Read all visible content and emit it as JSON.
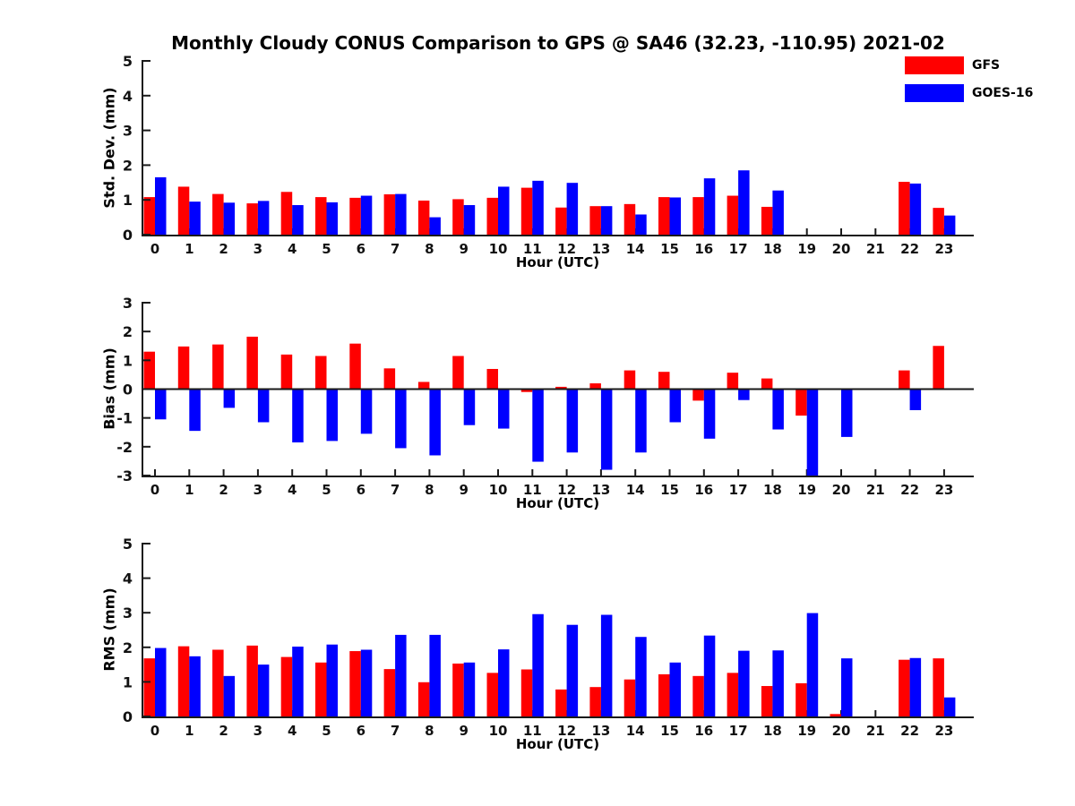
{
  "title": "Monthly Cloudy CONUS Comparison to GPS @ SA46 (32.23, -110.95) 2021-02",
  "legend": {
    "position": "top-right-outside",
    "entries": [
      {
        "label": "GFS",
        "color": "#ff0000"
      },
      {
        "label": "GOES-16",
        "color": "#0000ff"
      }
    ]
  },
  "colors": {
    "gfs": "#ff0000",
    "goes16": "#0000ff",
    "axis": "#1a1a1a",
    "text": "#111111"
  },
  "chart_data": [
    {
      "type": "bar",
      "ylabel": "Std. Dev. (mm)",
      "xlabel": "Hour (UTC)",
      "ylim": [
        0,
        5
      ],
      "yticks": [
        0,
        1,
        2,
        3,
        4,
        5
      ],
      "grid": false,
      "categories": [
        "0",
        "1",
        "2",
        "3",
        "4",
        "5",
        "6",
        "7",
        "8",
        "9",
        "10",
        "11",
        "12",
        "13",
        "14",
        "15",
        "16",
        "17",
        "18",
        "19",
        "20",
        "21",
        "22",
        "23"
      ],
      "series": [
        {
          "name": "GFS",
          "color": "#ff0000",
          "values": [
            1.08,
            1.38,
            1.17,
            0.9,
            1.23,
            1.08,
            1.06,
            1.16,
            0.98,
            1.02,
            1.06,
            1.35,
            0.78,
            0.82,
            0.88,
            1.08,
            1.08,
            1.12,
            0.8,
            null,
            null,
            null,
            1.52,
            0.77
          ]
        },
        {
          "name": "GOES-16",
          "color": "#0000ff",
          "values": [
            1.65,
            0.95,
            0.92,
            0.97,
            0.85,
            0.93,
            1.12,
            1.17,
            0.5,
            0.85,
            1.38,
            1.55,
            1.49,
            0.82,
            0.58,
            1.07,
            1.62,
            1.85,
            1.27,
            null,
            null,
            null,
            1.47,
            0.55
          ]
        }
      ]
    },
    {
      "type": "bar",
      "ylabel": "Bias (mm)",
      "xlabel": "Hour (UTC)",
      "ylim": [
        -3,
        3
      ],
      "yticks": [
        -3,
        -2,
        -1,
        0,
        1,
        2,
        3
      ],
      "grid": false,
      "categories": [
        "0",
        "1",
        "2",
        "3",
        "4",
        "5",
        "6",
        "7",
        "8",
        "9",
        "10",
        "11",
        "12",
        "13",
        "14",
        "15",
        "16",
        "17",
        "18",
        "19",
        "20",
        "21",
        "22",
        "23"
      ],
      "series": [
        {
          "name": "GFS",
          "color": "#ff0000",
          "values": [
            1.3,
            1.48,
            1.55,
            1.82,
            1.2,
            1.15,
            1.58,
            0.72,
            0.25,
            1.15,
            0.7,
            -0.1,
            0.08,
            0.2,
            0.65,
            0.6,
            -0.4,
            0.57,
            0.37,
            -0.92,
            null,
            null,
            0.65,
            1.5
          ]
        },
        {
          "name": "GOES-16",
          "color": "#0000ff",
          "values": [
            -1.05,
            -1.45,
            -0.65,
            -1.15,
            -1.85,
            -1.8,
            -1.55,
            -2.05,
            -2.3,
            -1.25,
            -1.37,
            -2.52,
            -2.2,
            -2.8,
            -2.2,
            -1.15,
            -1.72,
            -0.38,
            -1.4,
            -3.0,
            -1.66,
            null,
            -0.73,
            null
          ]
        }
      ]
    },
    {
      "type": "bar",
      "ylabel": "RMS (mm)",
      "xlabel": "Hour (UTC)",
      "ylim": [
        0,
        5
      ],
      "yticks": [
        0,
        1,
        2,
        3,
        4,
        5
      ],
      "grid": false,
      "categories": [
        "0",
        "1",
        "2",
        "3",
        "4",
        "5",
        "6",
        "7",
        "8",
        "9",
        "10",
        "11",
        "12",
        "13",
        "14",
        "15",
        "16",
        "17",
        "18",
        "19",
        "20",
        "21",
        "22",
        "23"
      ],
      "series": [
        {
          "name": "GFS",
          "color": "#ff0000",
          "values": [
            1.68,
            2.03,
            1.93,
            2.05,
            1.72,
            1.56,
            1.89,
            1.37,
            0.99,
            1.53,
            1.26,
            1.36,
            0.78,
            0.85,
            1.07,
            1.22,
            1.17,
            1.26,
            0.88,
            0.96,
            0.07,
            null,
            1.64,
            1.68
          ]
        },
        {
          "name": "GOES-16",
          "color": "#0000ff",
          "values": [
            1.98,
            1.74,
            1.17,
            1.5,
            2.02,
            2.08,
            1.93,
            2.36,
            2.36,
            1.56,
            1.94,
            2.96,
            2.65,
            2.94,
            2.3,
            1.56,
            2.34,
            1.9,
            1.91,
            2.99,
            1.68,
            null,
            1.69,
            0.55
          ]
        }
      ]
    }
  ]
}
